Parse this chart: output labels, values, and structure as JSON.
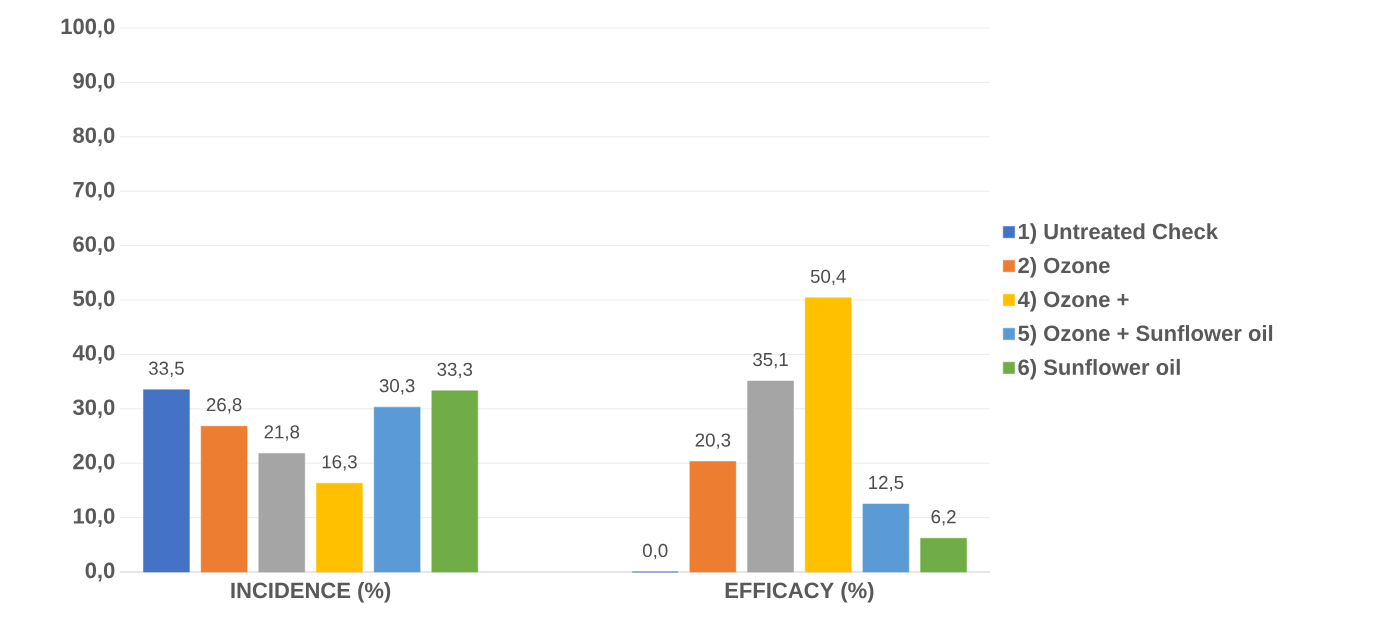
{
  "chart_data": {
    "type": "bar",
    "categories": [
      "INCIDENCE (%)",
      "EFFICACY (%)"
    ],
    "series": [
      {
        "name": "1) Untreated Check",
        "color": "#4472c4",
        "values": [
          33.5,
          0.0
        ],
        "value_labels": [
          "33,5",
          "0,0"
        ]
      },
      {
        "name": "2) Ozone",
        "color": "#ed7d31",
        "values": [
          26.8,
          20.3
        ],
        "value_labels": [
          "26,8",
          "20,3"
        ]
      },
      {
        "color": "#a5a5a5",
        "values": [
          21.8,
          35.1
        ],
        "value_labels": [
          "21,8",
          "35,1"
        ]
      },
      {
        "name": "4) Ozone +",
        "color": "#ffc000",
        "values": [
          16.3,
          50.4
        ],
        "value_labels": [
          "16,3",
          "50,4"
        ]
      },
      {
        "name": "5) Ozone + Sunflower oil",
        "color": "#5b9bd5",
        "values": [
          30.3,
          12.5
        ],
        "value_labels": [
          "30,3",
          "12,5"
        ]
      },
      {
        "name": "6) Sunflower oil",
        "color": "#70ad47",
        "values": [
          33.3,
          6.2
        ],
        "value_labels": [
          "33,3",
          "6,2"
        ]
      }
    ],
    "ylim": [
      0,
      100
    ],
    "yticks": [
      {
        "value": 0,
        "label": "0,0"
      },
      {
        "value": 10,
        "label": "10,0"
      },
      {
        "value": 20,
        "label": "20,0"
      },
      {
        "value": 30,
        "label": "30,0"
      },
      {
        "value": 40,
        "label": "40,0"
      },
      {
        "value": 50,
        "label": "50,0"
      },
      {
        "value": 60,
        "label": "60,0"
      },
      {
        "value": 70,
        "label": "70,0"
      },
      {
        "value": 80,
        "label": "80,0"
      },
      {
        "value": 90,
        "label": "90,0"
      },
      {
        "value": 100,
        "label": "100,0"
      }
    ],
    "grid": "y",
    "legend": "right"
  }
}
